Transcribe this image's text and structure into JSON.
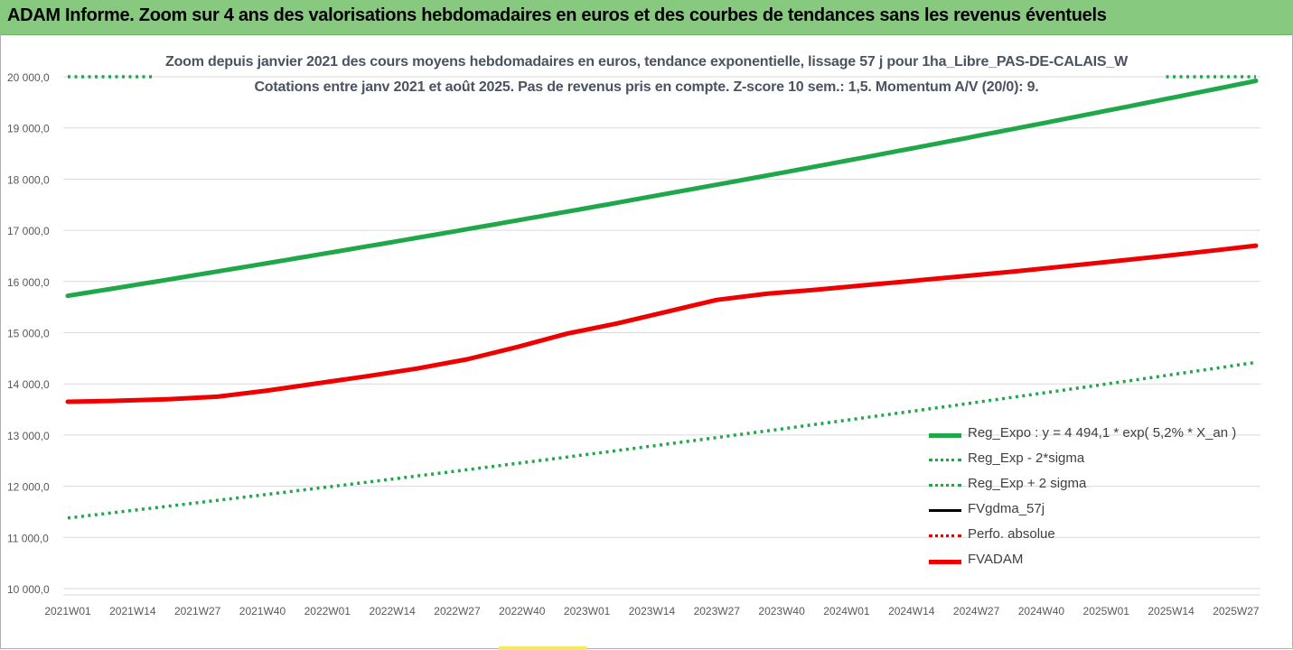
{
  "header": {
    "title": "ADAM Informe. Zoom sur 4 ans des valorisations hebdomadaires en euros et des courbes de tendances sans les revenus éventuels"
  },
  "chart_data": {
    "type": "line",
    "subtitle_line1": "Zoom depuis janvier 2021 des cours moyens hebdomadaires en euros, tendance exponentielle, lissage 57 j pour 1ha_Libre_PAS-DE-CALAIS_W",
    "subtitle_line2": "Cotations entre janv 2021 et août 2025.  Pas de revenus pris en compte. Z-score 10 sem.: 1,5. Momentum A/V (20/0): 9.",
    "x_tick_labels": [
      "2021W01",
      "2021W14",
      "2021W27",
      "2021W40",
      "2022W01",
      "2022W14",
      "2022W27",
      "2022W40",
      "2023W01",
      "2023W14",
      "2023W27",
      "2023W40",
      "2024W01",
      "2024W14",
      "2024W27",
      "2024W40",
      "2025W01",
      "2025W14",
      "2025W27"
    ],
    "y_tick_labels": [
      "10 000,0",
      "11 000,0",
      "12 000,0",
      "13 000,0",
      "14 000,0",
      "15 000,0",
      "16 000,0",
      "17 000,0",
      "18 000,0",
      "19 000,0",
      "20 000,0"
    ],
    "ylim": [
      10000,
      20000
    ],
    "x_range_weeks": [
      0,
      238
    ],
    "grid": "horizontal",
    "legend_position": "bottom-right",
    "series": [
      {
        "name": "Reg_Expo : y = 4 494,1 * exp( 5,2% *  X_an )",
        "color": "#1fa74a",
        "style": "solid-thick",
        "x": [
          0,
          238
        ],
        "values": [
          15720,
          19920
        ],
        "model": "exponential"
      },
      {
        "name": "Reg_Exp - 2*sigma",
        "color": "#1fa74a",
        "style": "dotted",
        "x": [
          0,
          238
        ],
        "values": [
          11380,
          14420
        ],
        "model": "exponential"
      },
      {
        "name": "Reg_Exp + 2 sigma",
        "color": "#1fa74a",
        "style": "dotted",
        "x": [
          0,
          17,
          220,
          238
        ],
        "values": [
          20000,
          20000,
          20000,
          20000
        ],
        "note_clip": true
      },
      {
        "name": "FVgdma_57j",
        "color": "#000000",
        "style": "solid",
        "x": [
          0,
          10,
          20,
          30,
          40,
          50,
          60,
          70,
          80,
          90,
          100,
          110,
          120,
          130,
          140,
          150,
          160,
          170,
          180,
          190,
          200,
          210,
          220,
          230,
          238
        ],
        "values": [
          13650,
          13680,
          13710,
          13760,
          13880,
          14020,
          14160,
          14300,
          14480,
          14720,
          14980,
          15180,
          15420,
          15640,
          15760,
          15840,
          15930,
          16020,
          16110,
          16200,
          16300,
          16400,
          16500,
          16610,
          16700
        ]
      },
      {
        "name": "Perfo. absolue",
        "color": "#e00000",
        "style": "dotted",
        "x": [],
        "values": []
      },
      {
        "name": "FVADAM",
        "color": "#ee0000",
        "style": "solid-thick",
        "x": [
          0,
          10,
          20,
          30,
          40,
          50,
          60,
          70,
          80,
          90,
          100,
          110,
          120,
          130,
          140,
          150,
          160,
          170,
          180,
          190,
          200,
          210,
          220,
          230,
          238
        ],
        "values": [
          13650,
          13670,
          13700,
          13750,
          13870,
          14010,
          14150,
          14300,
          14480,
          14720,
          14980,
          15180,
          15410,
          15640,
          15760,
          15840,
          15930,
          16020,
          16110,
          16200,
          16300,
          16400,
          16500,
          16610,
          16700
        ]
      }
    ]
  }
}
